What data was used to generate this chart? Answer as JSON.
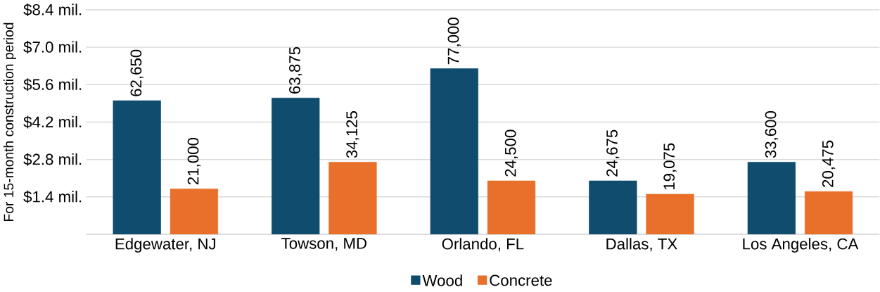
{
  "chart_data": {
    "type": "bar",
    "ylabel": "For 15-month construction period",
    "categories": [
      "Edgewater, NJ",
      "Towson, MD",
      "Orlando, FL",
      "Dallas, TX",
      "Los Angeles, CA"
    ],
    "series": [
      {
        "name": "Wood",
        "color": "#0f4c6e",
        "values": [
          5.0,
          5.1,
          6.2,
          2.0,
          2.7
        ]
      },
      {
        "name": "Concrete",
        "color": "#e8702a",
        "values": [
          1.7,
          2.7,
          2.0,
          1.5,
          1.6
        ]
      }
    ],
    "annotations": [
      "62,650",
      "21,000",
      "63,875",
      "34,125",
      "77,000",
      "24,500",
      "24,675",
      "19,075",
      "33,600",
      "20,475"
    ],
    "ylim": [
      0,
      8.4
    ],
    "yticks": [
      {
        "value": 0,
        "label": null
      },
      {
        "value": 1.4,
        "label": "$1.4 mil."
      },
      {
        "value": 2.8,
        "label": "$2.8 mil."
      },
      {
        "value": 4.2,
        "label": "$4.2 mil."
      },
      {
        "value": 5.6,
        "label": "$5.6 mil."
      },
      {
        "value": 7.0,
        "label": "$7.0 mil."
      },
      {
        "value": 8.4,
        "label": "$8.4 mil."
      }
    ],
    "grid": "y",
    "legend": "bottom"
  }
}
